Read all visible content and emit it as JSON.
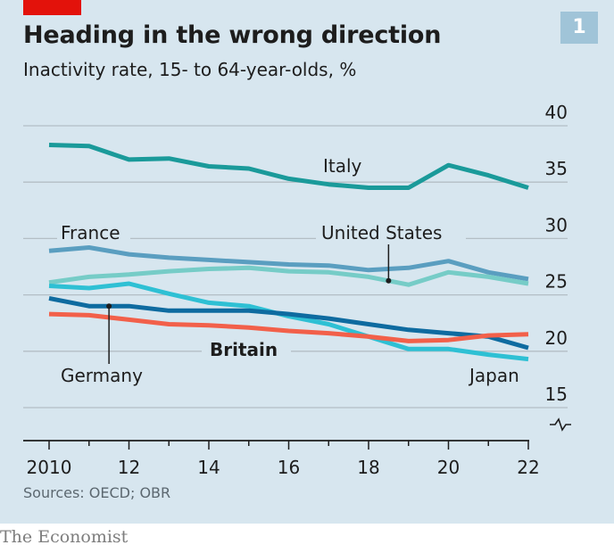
{
  "header": {
    "title": "Heading in the wrong direction",
    "subtitle": "Inactivity rate, 15- to 64-year-olds, %",
    "badge": "1"
  },
  "footer": {
    "source": "Sources: OECD; OBR",
    "brand": "The Economist"
  },
  "colors": {
    "background": "#d7e6ef",
    "accent_tab": "#e3120b",
    "badge": "#a0c4d8",
    "gridline": "#b3bec5",
    "axis": "#1d1d1d"
  },
  "chart_data": {
    "type": "line",
    "title": "Heading in the wrong direction",
    "subtitle": "Inactivity rate, 15- to 64-year-olds, %",
    "xlabel": "",
    "ylabel": "%",
    "x": [
      2010,
      2011,
      2012,
      2013,
      2014,
      2015,
      2016,
      2017,
      2018,
      2019,
      2020,
      2021,
      2022
    ],
    "x_tick_values": [
      2010,
      2012,
      2014,
      2016,
      2018,
      2020,
      2022
    ],
    "x_tick_labels": [
      "2010",
      "12",
      "14",
      "16",
      "18",
      "20",
      "22"
    ],
    "xlim": [
      2010,
      2022
    ],
    "ylim": [
      15,
      40
    ],
    "y_axis_broken_below": 15,
    "y_ticks": [
      15,
      20,
      25,
      30,
      35,
      40
    ],
    "y_tick_labels": [
      "15",
      "20",
      "25",
      "30",
      "35",
      "40"
    ],
    "y_axis_position": "right",
    "grid": true,
    "legend": "direct-labels",
    "series": [
      {
        "name": "Italy",
        "color": "#1a9a9a",
        "values": [
          38.3,
          38.2,
          37.0,
          37.1,
          36.4,
          36.2,
          35.3,
          34.8,
          34.5,
          34.5,
          36.5,
          35.6,
          34.5
        ]
      },
      {
        "name": "France",
        "color": "#5a9ec0",
        "values": [
          28.9,
          29.2,
          28.6,
          28.3,
          28.1,
          27.9,
          27.7,
          27.6,
          27.2,
          27.4,
          28.0,
          27.0,
          26.4
        ]
      },
      {
        "name": "United States",
        "color": "#76ccc7",
        "values": [
          26.1,
          26.6,
          26.8,
          27.1,
          27.3,
          27.4,
          27.1,
          27.0,
          26.6,
          25.9,
          27.0,
          26.6,
          26.0
        ]
      },
      {
        "name": "Japan",
        "color": "#2ec0d4",
        "values": [
          25.8,
          25.6,
          26.0,
          25.1,
          24.3,
          24.0,
          23.1,
          22.4,
          21.3,
          20.2,
          20.2,
          19.7,
          19.3
        ]
      },
      {
        "name": "Germany",
        "color": "#0e6ba0",
        "values": [
          24.7,
          24.0,
          24.0,
          23.6,
          23.6,
          23.6,
          23.3,
          22.9,
          22.4,
          21.9,
          21.6,
          21.3,
          20.3
        ]
      },
      {
        "name": "Britain",
        "color": "#f2604a",
        "values": [
          23.3,
          23.2,
          22.8,
          22.4,
          22.3,
          22.1,
          21.8,
          21.6,
          21.3,
          20.9,
          21.0,
          21.4,
          21.5
        ]
      }
    ],
    "annotations": [
      {
        "label": "Italy",
        "series": "Italy",
        "bold": false
      },
      {
        "label": "France",
        "series": "France",
        "bold": false
      },
      {
        "label": "United States",
        "series": "United States",
        "bold": false,
        "pointer_year": 2018.5
      },
      {
        "label": "Germany",
        "series": "Germany",
        "bold": false,
        "pointer_year": 2011.5
      },
      {
        "label": "Britain",
        "series": "Britain",
        "bold": true
      },
      {
        "label": "Japan",
        "series": "Japan",
        "bold": false
      }
    ]
  }
}
